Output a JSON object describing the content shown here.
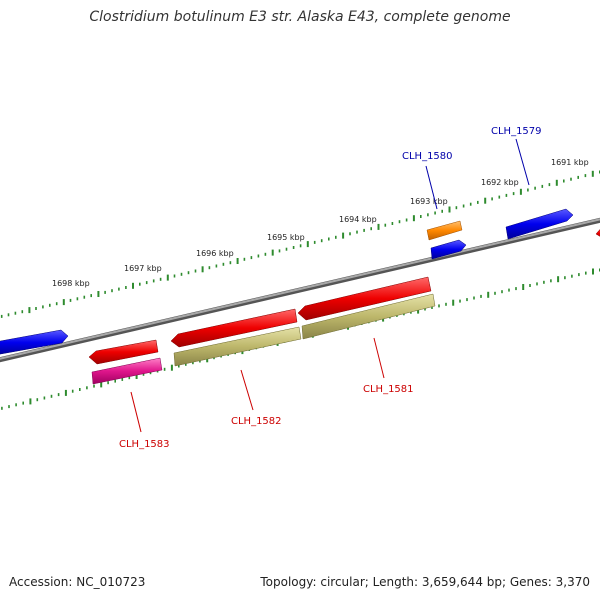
{
  "title": "Clostridium botulinum E3 str. Alaska E43, complete genome",
  "footer": {
    "accession": "Accession: NC_010723",
    "topology": "Topology: circular; Length: 3,659,644 bp; Genes: 3,370"
  },
  "colors": {
    "backbone": "#808080",
    "tick_marks": "#2e8b2e",
    "label_forward": "#0000aa",
    "label_reverse": "#cc0000",
    "gene_blue": "#0000ee",
    "gene_red": "#ee0000",
    "gene_orange": "#ff8800",
    "gene_magenta": "#e0168c",
    "gene_khaki": "#bdb76b"
  },
  "scale_labels": [
    "1698 kbp",
    "1697 kbp",
    "1696 kbp",
    "1695 kbp",
    "1694 kbp",
    "1693 kbp",
    "1692 kbp",
    "1691 kbp"
  ],
  "gene_labels": [
    {
      "id": "CLH_1580",
      "strand": "forward"
    },
    {
      "id": "CLH_1579",
      "strand": "forward"
    },
    {
      "id": "CLH_1583",
      "strand": "reverse"
    },
    {
      "id": "CLH_1582",
      "strand": "reverse"
    },
    {
      "id": "CLH_1581",
      "strand": "reverse"
    }
  ]
}
